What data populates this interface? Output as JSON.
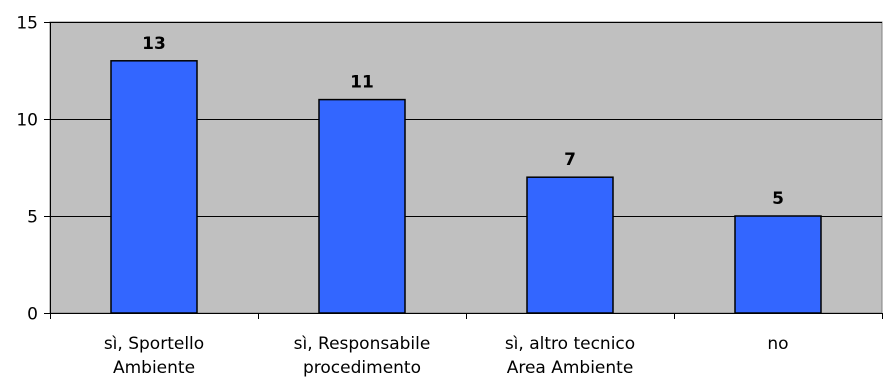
{
  "chart_data": {
    "type": "bar",
    "categories": [
      [
        "sì, Sportello",
        "Ambiente"
      ],
      [
        "sì, Responsabile",
        "procedimento"
      ],
      [
        "sì, altro tecnico",
        "Area Ambiente"
      ],
      [
        "no"
      ]
    ],
    "values": [
      13,
      11,
      7,
      5
    ],
    "data_labels": [
      "13",
      "11",
      "7",
      "5"
    ],
    "ylim": [
      0,
      15
    ],
    "yticks": [
      0,
      5,
      10,
      15
    ],
    "ytick_labels": [
      "0",
      "5",
      "10",
      "15"
    ],
    "grid": true,
    "colors": {
      "bar_fill": "#3366FF",
      "bar_stroke": "#000000",
      "plot_background": "#C0C0C0",
      "grid": "#000000"
    }
  }
}
